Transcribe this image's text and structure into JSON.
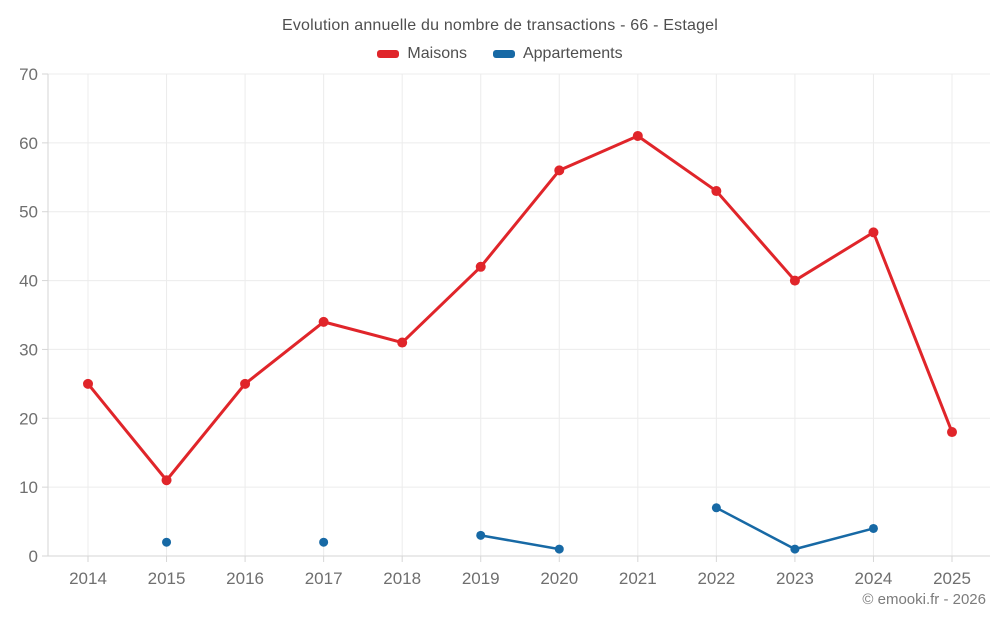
{
  "header": {
    "title": "Evolution annuelle du nombre de transactions - 66 - Estagel"
  },
  "legend": {
    "items": [
      {
        "label": "Maisons",
        "color": "#e0252a"
      },
      {
        "label": "Appartements",
        "color": "#1769a5"
      }
    ]
  },
  "footer": {
    "attribution": "© emooki.fr - 2026"
  },
  "colors": {
    "maisons": "#e0252a",
    "appartements": "#1769a5",
    "gridline": "#ececec",
    "axis": "#d6d6d6",
    "tick_text": "#6f6f6f",
    "title_text": "#4f4f4f"
  },
  "chart_data": {
    "type": "line",
    "title": "Evolution annuelle du nombre de transactions - 66 - Estagel",
    "x": [
      2014,
      2015,
      2016,
      2017,
      2018,
      2019,
      2020,
      2021,
      2022,
      2023,
      2024,
      2025
    ],
    "series": [
      {
        "name": "Maisons",
        "color": "#e0252a",
        "marker_radius": 5,
        "line_width": 3,
        "values": [
          25,
          11,
          25,
          34,
          31,
          42,
          56,
          61,
          53,
          40,
          47,
          18
        ]
      },
      {
        "name": "Appartements",
        "color": "#1769a5",
        "marker_radius": 4.5,
        "line_width": 2.5,
        "values": [
          null,
          2,
          null,
          2,
          null,
          3,
          1,
          null,
          7,
          1,
          4,
          null
        ]
      }
    ],
    "xlabel": "",
    "ylabel": "",
    "ylim": [
      0,
      70
    ],
    "y_ticks": [
      0,
      10,
      20,
      30,
      40,
      50,
      60,
      70
    ],
    "grid": true,
    "legend_position": "top"
  }
}
